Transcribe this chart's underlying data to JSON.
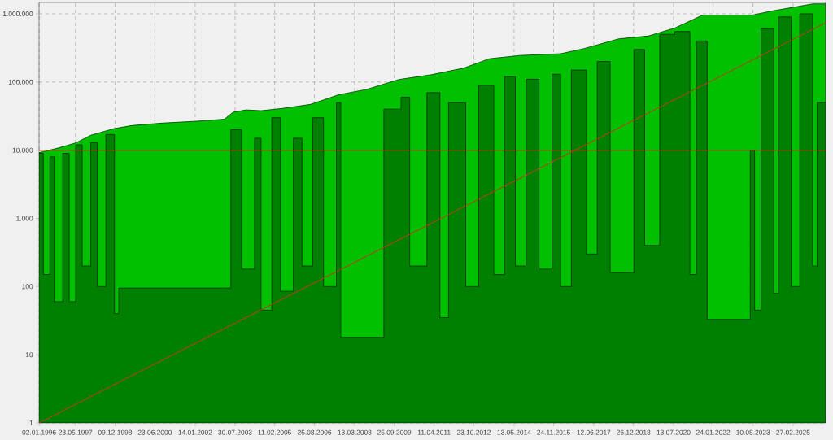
{
  "chart_data": {
    "type": "area",
    "log": "y",
    "grid": true,
    "xlim": [
      "1996-01",
      "2026-06"
    ],
    "ylim": [
      1,
      1470000
    ],
    "xticks": [
      {
        "value": "1996-01-02",
        "label": "02.01.1996"
      },
      {
        "value": "1997-05-28",
        "label": "28.05.1997"
      },
      {
        "value": "1998-12-09",
        "label": "09.12.1998"
      },
      {
        "value": "2000-06-23",
        "label": "23.06.2000"
      },
      {
        "value": "2002-01-14",
        "label": "14.01.2002"
      },
      {
        "value": "2003-07-30",
        "label": "30.07.2003"
      },
      {
        "value": "2005-02-11",
        "label": "11.02.2005"
      },
      {
        "value": "2006-08-25",
        "label": "25.08.2006"
      },
      {
        "value": "2008-03-13",
        "label": "13.03.2008"
      },
      {
        "value": "2009-09-25",
        "label": "25.09.2009"
      },
      {
        "value": "2011-04-11",
        "label": "11.04.2011"
      },
      {
        "value": "2012-10-23",
        "label": "23.10.2012"
      },
      {
        "value": "2014-05-13",
        "label": "13.05.2014"
      },
      {
        "value": "2015-11-24",
        "label": "24.11.2015"
      },
      {
        "value": "2017-06-12",
        "label": "12.06.2017"
      },
      {
        "value": "2018-12-26",
        "label": "26.12.2018"
      },
      {
        "value": "2020-07-13",
        "label": "13.07.2020"
      },
      {
        "value": "2022-01-24",
        "label": "24.01.2022"
      },
      {
        "value": "2023-08-10",
        "label": "10.08.2023"
      },
      {
        "value": "2025-02-27",
        "label": "27.02.2025"
      }
    ],
    "yticks": [
      1,
      10,
      100,
      {
        "value": 1000,
        "label": "1.000"
      },
      {
        "value": 10000,
        "label": "10.000"
      },
      {
        "value": 100000,
        "label": "100.000"
      },
      {
        "value": 1000000,
        "label": "1.000.000"
      }
    ],
    "ref_lines": [
      {
        "axis": "y",
        "value": 10000,
        "color": "#b03a10"
      }
    ],
    "series": [
      {
        "color": "#00c000",
        "x": [
          "1996-01",
          "1996-10",
          "1997-06",
          "1998-01",
          "1998-12",
          "1999-08",
          "2000-10",
          "2002-02",
          "2003-03",
          "2003-07",
          "2004-01",
          "2004-08",
          "2005-06",
          "2006-07",
          "2007-08",
          "2008-09",
          "2009-12",
          "2011-03",
          "2012-06",
          "2013-06",
          "2014-08",
          "2016-03",
          "2017-02",
          "2018-06",
          "2019-08",
          "2020-08",
          "2021-09",
          "2023-08",
          "2024-05",
          "2025-05",
          "2025-12",
          "2026-06"
        ],
        "values": [
          9200,
          10800,
          12800,
          16600,
          20800,
          23000,
          25000,
          26600,
          28500,
          36000,
          39000,
          38000,
          41000,
          47000,
          65000,
          78000,
          109000,
          128000,
          160000,
          220000,
          245000,
          260000,
          310000,
          430000,
          475000,
          620000,
          960000,
          960000,
          1100000,
          1280000,
          1400000,
          1400000
        ]
      },
      {
        "type": "area",
        "color": "#008000",
        "x": [
          "1996-01",
          "1996-03",
          "1996-03",
          "1996-06",
          "1996-06",
          "1996-08",
          "1996-08",
          "1996-12",
          "1996-12",
          "1997-03",
          "1997-03",
          "1997-06",
          "1997-06",
          "1997-09",
          "1997-09",
          "1998-01",
          "1998-01",
          "1998-04",
          "1998-04",
          "1998-08",
          "1998-08",
          "1998-12",
          "1998-12",
          "1999-02",
          "1999-02",
          "2003-06",
          "2003-06",
          "2003-11",
          "2003-11",
          "2004-05",
          "2004-05",
          "2004-08",
          "2004-08",
          "2005-01",
          "2005-01",
          "2005-05",
          "2005-05",
          "2005-11",
          "2005-11",
          "2006-03",
          "2006-03",
          "2006-08",
          "2006-08",
          "2007-01",
          "2007-01",
          "2007-07",
          "2007-07",
          "2007-09",
          "2007-09",
          "2009-05",
          "2009-05",
          "2010-01",
          "2010-01",
          "2010-05",
          "2010-05",
          "2011-01",
          "2011-01",
          "2011-07",
          "2011-07",
          "2011-11",
          "2011-11",
          "2012-07",
          "2012-07",
          "2013-01",
          "2013-01",
          "2013-08",
          "2013-08",
          "2014-01",
          "2014-01",
          "2014-06",
          "2014-06",
          "2014-11",
          "2014-11",
          "2015-05",
          "2015-05",
          "2015-11",
          "2015-11",
          "2016-03",
          "2016-03",
          "2016-08",
          "2016-08",
          "2017-03",
          "2017-03",
          "2017-08",
          "2017-08",
          "2018-02",
          "2018-02",
          "2019-01",
          "2019-01",
          "2019-06",
          "2019-06",
          "2020-01",
          "2020-01",
          "2020-08",
          "2020-08",
          "2021-03",
          "2021-03",
          "2021-06",
          "2021-06",
          "2021-11",
          "2021-11",
          "2023-07",
          "2023-07",
          "2023-09",
          "2023-09",
          "2023-12",
          "2023-12",
          "2024-06",
          "2024-06",
          "2024-08",
          "2024-08",
          "2025-02",
          "2025-02",
          "2025-06",
          "2025-06",
          "2025-12",
          "2025-12",
          "2026-02",
          "2026-02",
          "2026-06"
        ],
        "values": [
          9000,
          9000,
          150,
          150,
          8000,
          8000,
          60,
          60,
          9000,
          9000,
          60,
          60,
          12000,
          12000,
          200,
          200,
          13000,
          13000,
          100,
          100,
          17000,
          17000,
          40,
          40,
          95,
          95,
          20000,
          20000,
          180,
          180,
          15000,
          15000,
          45,
          45,
          30000,
          30000,
          85,
          85,
          15000,
          15000,
          200,
          200,
          30000,
          30000,
          100,
          100,
          50000,
          50000,
          18,
          18,
          40000,
          40000,
          60000,
          60000,
          200,
          200,
          70000,
          70000,
          35,
          35,
          50000,
          50000,
          100,
          100,
          90000,
          90000,
          150,
          150,
          120000,
          120000,
          200,
          200,
          110000,
          110000,
          180,
          180,
          130000,
          130000,
          100,
          100,
          150000,
          150000,
          300,
          300,
          200000,
          200000,
          160,
          160,
          300000,
          300000,
          400,
          400,
          500000,
          500000,
          550000,
          550000,
          150,
          150,
          400000,
          400000,
          33,
          33,
          10000,
          10000,
          45,
          45,
          600000,
          600000,
          80,
          80,
          900000,
          900000,
          100,
          100,
          1000000,
          1000000,
          200,
          200,
          50000,
          50000
        ]
      },
      {
        "type": "line",
        "color": "#b04020",
        "x": [
          "1996-01",
          "2026-06"
        ],
        "values": [
          1,
          740000
        ]
      }
    ]
  }
}
